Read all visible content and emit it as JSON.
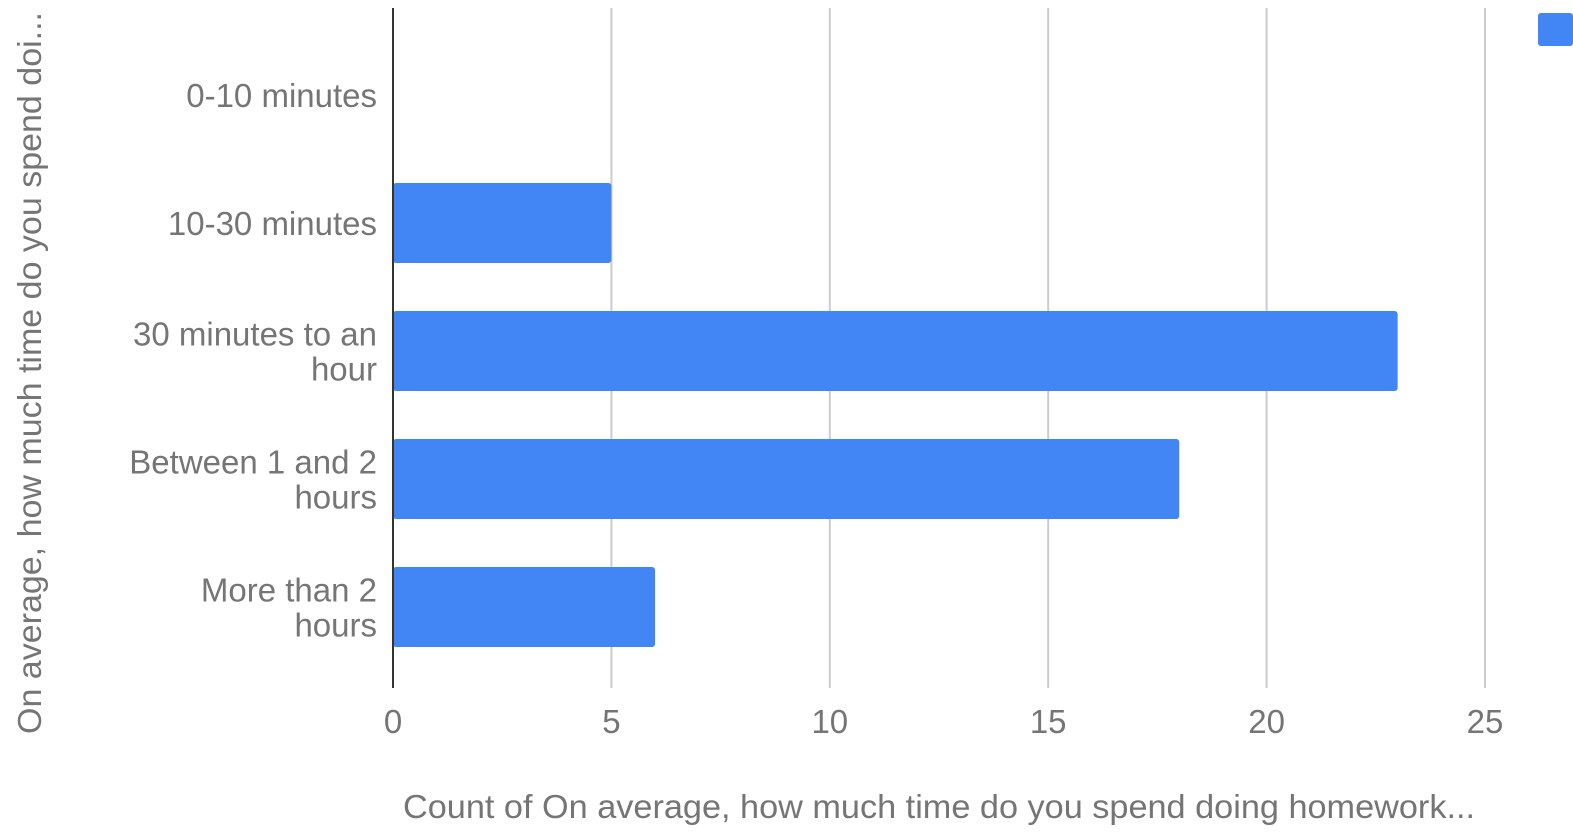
{
  "chart_data": {
    "type": "bar",
    "orientation": "horizontal",
    "categories": [
      "0-10 minutes",
      "10-30 minutes",
      "30 minutes to an hour",
      "Between 1 and 2 hours",
      "More than 2 hours"
    ],
    "category_label_lines": [
      [
        "0-10 minutes"
      ],
      [
        "10-30 minutes"
      ],
      [
        "30 minutes to an",
        "hour"
      ],
      [
        "Between 1 and 2",
        "hours"
      ],
      [
        "More than 2",
        "hours"
      ]
    ],
    "values": [
      0,
      5,
      23,
      18,
      6
    ],
    "xlabel": "Count of On average, how much time do you spend doing homework...",
    "ylabel": "On average, how much time do you spend doi...",
    "xlim": [
      0,
      25
    ],
    "xticks": [
      "0",
      "5",
      "10",
      "15",
      "20",
      "25"
    ],
    "grid": true,
    "legend_position": "top-right",
    "colors": {
      "bar": "#4285f4",
      "grid": "#cccccc",
      "axis": "#333333",
      "text": "#757575"
    }
  }
}
